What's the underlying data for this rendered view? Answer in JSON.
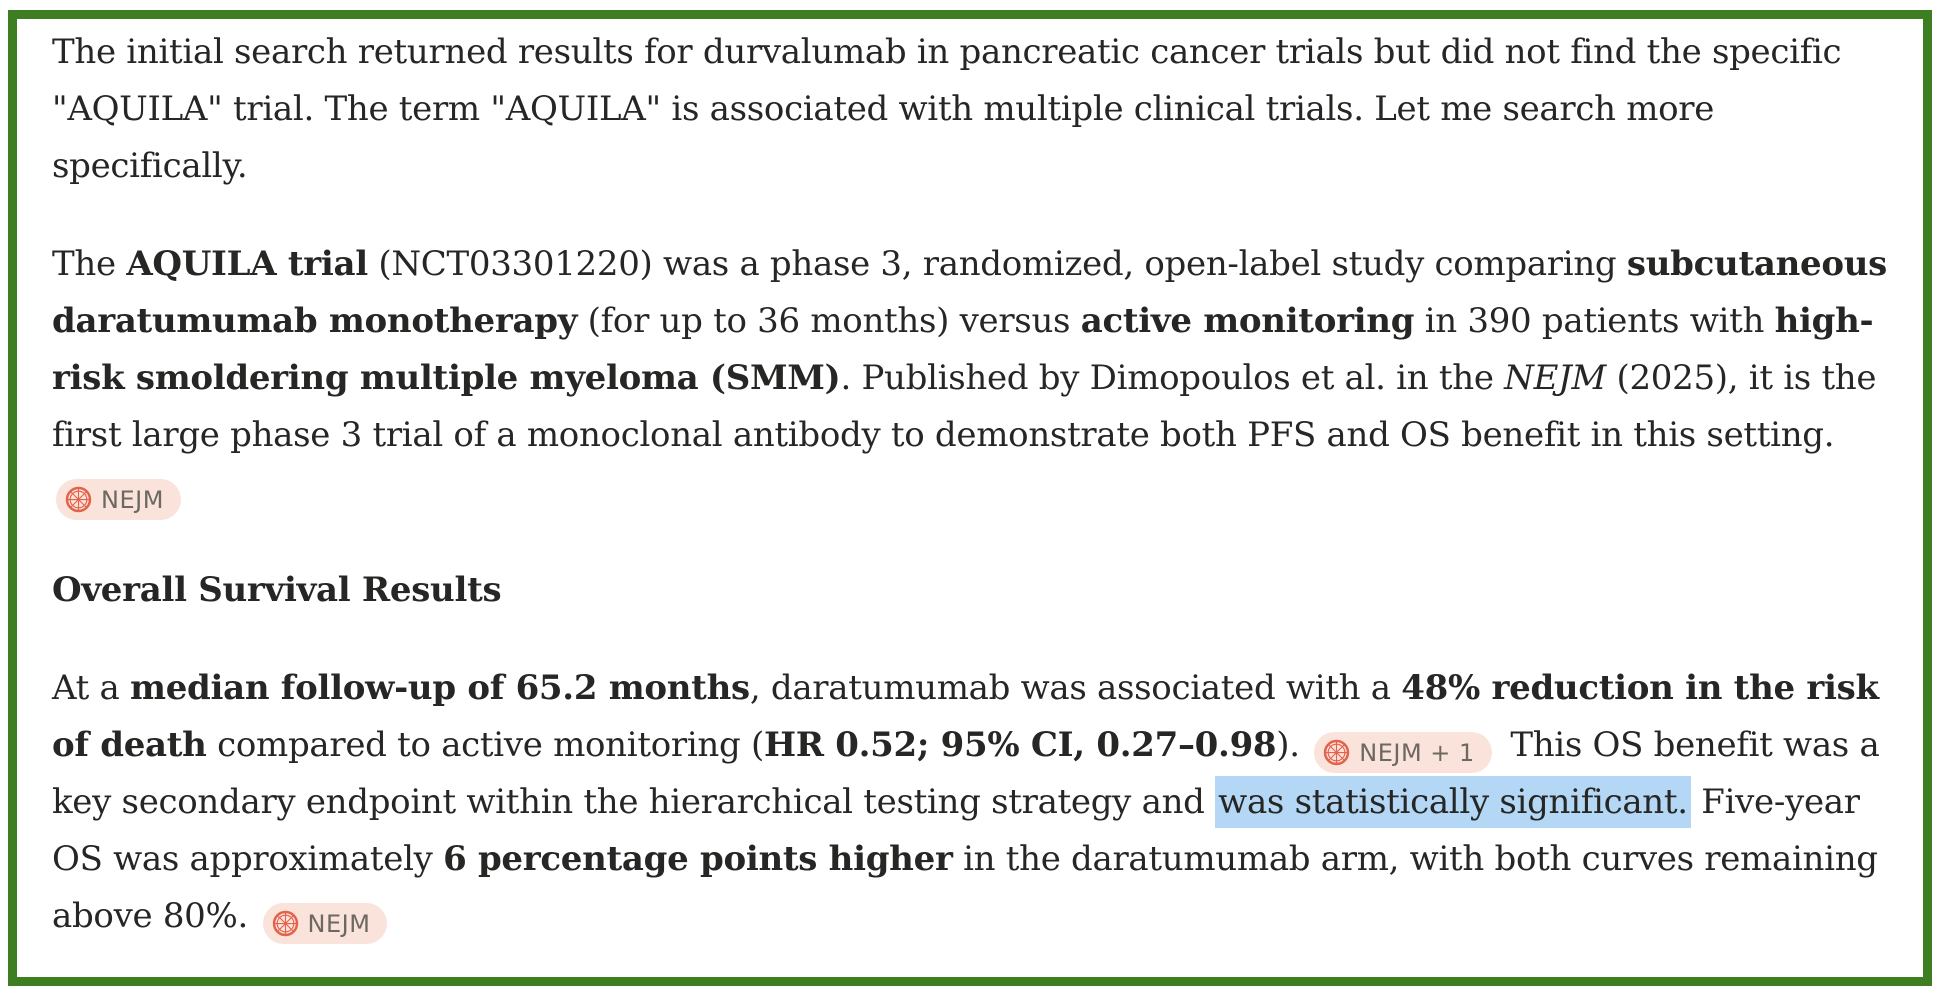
{
  "colors": {
    "frame_border": "#3e7e22",
    "text": "#262625",
    "badge_bg": "#fae3da",
    "badge_icon": "#e4614b",
    "badge_text": "#6d6862",
    "highlight_bg": "#b3d7f5"
  },
  "content": {
    "blocks": [
      {
        "type": "paragraph",
        "segments": [
          {
            "text": "The initial search returned results for durvalumab in pancreatic cancer trials but did not find the specific \"AQUILA\" trial. The term \"AQUILA\" is associated with multiple clinical trials. Let me search more specifically."
          }
        ]
      },
      {
        "type": "paragraph",
        "segments": [
          {
            "text": "The "
          },
          {
            "text": "AQUILA trial",
            "bold": true
          },
          {
            "text": " (NCT03301220) was a phase 3, randomized, open-label study comparing "
          },
          {
            "text": "subcutaneous daratumumab monotherapy",
            "bold": true
          },
          {
            "text": " (for up to 36 months) versus "
          },
          {
            "text": "active monitoring",
            "bold": true
          },
          {
            "text": " in 390 patients with "
          },
          {
            "text": "high-risk smoldering multiple myeloma (SMM)",
            "bold": true
          },
          {
            "text": ". Published by Dimopoulos et al. in the "
          },
          {
            "text": "NEJM",
            "italic": true
          },
          {
            "text": " (2025), it is the first large phase 3 trial of a monoclonal antibody to demonstrate both PFS and OS benefit in this setting. "
          },
          {
            "badge": "NEJM"
          }
        ]
      },
      {
        "type": "heading",
        "text": "Overall Survival Results"
      },
      {
        "type": "paragraph",
        "segments": [
          {
            "text": "At a "
          },
          {
            "text": "median follow-up of 65.2 months",
            "bold": true
          },
          {
            "text": ", daratumumab was associated with a "
          },
          {
            "text": "48% reduction in the risk of death",
            "bold": true
          },
          {
            "text": " compared to active monitoring ("
          },
          {
            "text": "HR 0.52; 95% CI, 0.27–0.98",
            "bold": true
          },
          {
            "text": "). "
          },
          {
            "badge": "NEJM + 1"
          },
          {
            "text": " This OS benefit was a key secondary endpoint within the hierarchical testing strategy and "
          },
          {
            "text": "was statistically significant.",
            "highlight": true
          },
          {
            "text": " Five-year OS was approximately "
          },
          {
            "text": "6 percentage points higher",
            "bold": true
          },
          {
            "text": " in the daratumumab arm, with both curves remaining above 80%. "
          },
          {
            "badge": "NEJM"
          }
        ]
      }
    ]
  }
}
